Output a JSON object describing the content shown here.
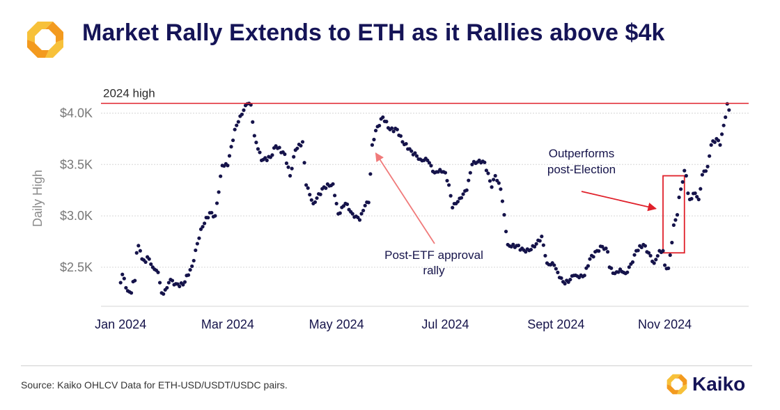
{
  "title": "Market Rally Extends to ETH as it Rallies above $4k",
  "source": "Source: Kaiko OHLCV Data for ETH-USD/USDT/USDC pairs.",
  "brand": {
    "name": "Kaiko",
    "icon": "kaiko-logo-icon",
    "accent": "#f39a1e",
    "accent_light": "#f7c13a"
  },
  "colors": {
    "points": "#15134a",
    "highlight": "#e0202a",
    "arrow_pink": "#f07a7a",
    "grid": "#d6d6d6",
    "text": "#15134a",
    "tick": "#777777"
  },
  "chart_data": {
    "type": "scatter",
    "title": "",
    "xlabel": "",
    "ylabel": "Daily High",
    "x_ticks": [
      {
        "label": "Jan 2024",
        "date": "2024-01-01"
      },
      {
        "label": "Mar 2024",
        "date": "2024-03-01"
      },
      {
        "label": "May 2024",
        "date": "2024-05-01"
      },
      {
        "label": "Jul 2024",
        "date": "2024-07-01"
      },
      {
        "label": "Sept 2024",
        "date": "2024-09-01"
      },
      {
        "label": "Nov 2024",
        "date": "2024-11-01"
      }
    ],
    "y_ticks": [
      {
        "label": "$2.5K",
        "value": 2500
      },
      {
        "label": "$3.0K",
        "value": 3000
      },
      {
        "label": "$3.5K",
        "value": 3500
      },
      {
        "label": "$4.0K",
        "value": 4000
      }
    ],
    "xlim": [
      "2023-12-21",
      "2024-12-18"
    ],
    "ylim": [
      2120,
      4220
    ],
    "grid": "horizontal",
    "reference_line": {
      "label": "2024 high",
      "value": 4095
    },
    "annotations": [
      {
        "text_lines": [
          "Post-ETF approval",
          "rally"
        ],
        "arrow_to": {
          "date": "2024-05-23",
          "value": 3610
        }
      },
      {
        "text_lines": [
          "Outperforms",
          "post-Election"
        ],
        "arrow_to": {
          "date": "2024-10-27",
          "value": 3070
        }
      }
    ],
    "highlight_box": {
      "from": "2024-10-31",
      "to": "2024-11-12",
      "low": 2640,
      "high": 3390
    },
    "series": [
      {
        "anchors": [
          [
            "2024-01-01",
            2350
          ],
          [
            "2024-01-02",
            2430
          ],
          [
            "2024-01-03",
            2390
          ],
          [
            "2024-01-04",
            2300
          ],
          [
            "2024-01-05",
            2270
          ],
          [
            "2024-01-06",
            2260
          ],
          [
            "2024-01-07",
            2250
          ],
          [
            "2024-01-08",
            2360
          ],
          [
            "2024-01-09",
            2370
          ],
          [
            "2024-01-10",
            2640
          ],
          [
            "2024-01-11",
            2710
          ],
          [
            "2024-01-12",
            2660
          ],
          [
            "2024-01-13",
            2580
          ],
          [
            "2024-01-14",
            2570
          ],
          [
            "2024-01-15",
            2550
          ],
          [
            "2024-01-16",
            2600
          ],
          [
            "2024-01-17",
            2580
          ],
          [
            "2024-01-18",
            2530
          ],
          [
            "2024-01-19",
            2500
          ],
          [
            "2024-01-20",
            2480
          ],
          [
            "2024-01-21",
            2470
          ],
          [
            "2024-01-22",
            2450
          ],
          [
            "2024-01-23",
            2350
          ],
          [
            "2024-01-24",
            2250
          ],
          [
            "2024-01-25",
            2240
          ],
          [
            "2024-01-26",
            2280
          ],
          [
            "2024-01-27",
            2300
          ],
          [
            "2024-01-28",
            2350
          ],
          [
            "2024-01-29",
            2380
          ],
          [
            "2024-01-30",
            2370
          ],
          [
            "2024-01-31",
            2330
          ],
          [
            "2024-02-05",
            2330
          ],
          [
            "2024-02-10",
            2510
          ],
          [
            "2024-02-15",
            2870
          ],
          [
            "2024-02-20",
            3030
          ],
          [
            "2024-02-23",
            3000
          ],
          [
            "2024-02-27",
            3490
          ],
          [
            "2024-03-01",
            3490
          ],
          [
            "2024-03-05",
            3840
          ],
          [
            "2024-03-08",
            3970
          ],
          [
            "2024-03-12",
            4090
          ],
          [
            "2024-03-14",
            4080
          ],
          [
            "2024-03-16",
            3780
          ],
          [
            "2024-03-20",
            3540
          ],
          [
            "2024-03-25",
            3570
          ],
          [
            "2024-03-28",
            3680
          ],
          [
            "2024-04-02",
            3600
          ],
          [
            "2024-04-05",
            3390
          ],
          [
            "2024-04-08",
            3640
          ],
          [
            "2024-04-12",
            3720
          ],
          [
            "2024-04-14",
            3300
          ],
          [
            "2024-04-18",
            3120
          ],
          [
            "2024-04-24",
            3280
          ],
          [
            "2024-04-29",
            3310
          ],
          [
            "2024-05-02",
            3020
          ],
          [
            "2024-05-06",
            3120
          ],
          [
            "2024-05-10",
            3020
          ],
          [
            "2024-05-14",
            2960
          ],
          [
            "2024-05-17",
            3100
          ],
          [
            "2024-05-19",
            3130
          ],
          [
            "2024-05-21",
            3690
          ],
          [
            "2024-05-23",
            3830
          ],
          [
            "2024-05-27",
            3960
          ],
          [
            "2024-05-31",
            3840
          ],
          [
            "2024-06-04",
            3840
          ],
          [
            "2024-06-07",
            3720
          ],
          [
            "2024-06-12",
            3630
          ],
          [
            "2024-06-17",
            3550
          ],
          [
            "2024-06-21",
            3540
          ],
          [
            "2024-06-25",
            3420
          ],
          [
            "2024-06-28",
            3450
          ],
          [
            "2024-07-01",
            3420
          ],
          [
            "2024-07-03",
            3300
          ],
          [
            "2024-07-05",
            3080
          ],
          [
            "2024-07-09",
            3170
          ],
          [
            "2024-07-13",
            3250
          ],
          [
            "2024-07-16",
            3500
          ],
          [
            "2024-07-20",
            3540
          ],
          [
            "2024-07-23",
            3520
          ],
          [
            "2024-07-27",
            3280
          ],
          [
            "2024-07-29",
            3390
          ],
          [
            "2024-08-01",
            3260
          ],
          [
            "2024-08-03",
            3010
          ],
          [
            "2024-08-05",
            2720
          ],
          [
            "2024-08-07",
            2700
          ],
          [
            "2024-08-10",
            2710
          ],
          [
            "2024-08-15",
            2650
          ],
          [
            "2024-08-20",
            2700
          ],
          [
            "2024-08-24",
            2800
          ],
          [
            "2024-08-27",
            2540
          ],
          [
            "2024-08-31",
            2520
          ],
          [
            "2024-09-03",
            2400
          ],
          [
            "2024-09-06",
            2340
          ],
          [
            "2024-09-09",
            2380
          ],
          [
            "2024-09-11",
            2420
          ],
          [
            "2024-09-14",
            2400
          ],
          [
            "2024-09-17",
            2420
          ],
          [
            "2024-09-20",
            2580
          ],
          [
            "2024-09-24",
            2660
          ],
          [
            "2024-09-27",
            2700
          ],
          [
            "2024-09-30",
            2650
          ],
          [
            "2024-10-01",
            2500
          ],
          [
            "2024-10-04",
            2440
          ],
          [
            "2024-10-07",
            2480
          ],
          [
            "2024-10-10",
            2440
          ],
          [
            "2024-10-14",
            2550
          ],
          [
            "2024-10-16",
            2660
          ],
          [
            "2024-10-20",
            2720
          ],
          [
            "2024-10-23",
            2640
          ],
          [
            "2024-10-26",
            2540
          ],
          [
            "2024-10-29",
            2660
          ],
          [
            "2024-10-31",
            2660
          ],
          [
            "2024-11-01",
            2520
          ],
          [
            "2024-11-03",
            2490
          ],
          [
            "2024-11-05",
            2740
          ],
          [
            "2024-11-06",
            2910
          ],
          [
            "2024-11-07",
            2960
          ],
          [
            "2024-11-08",
            3010
          ],
          [
            "2024-11-09",
            3180
          ],
          [
            "2024-11-10",
            3260
          ],
          [
            "2024-11-11",
            3330
          ],
          [
            "2024-11-12",
            3440
          ],
          [
            "2024-11-13",
            3390
          ],
          [
            "2024-11-14",
            3220
          ],
          [
            "2024-11-15",
            3160
          ],
          [
            "2024-11-18",
            3220
          ],
          [
            "2024-11-20",
            3160
          ],
          [
            "2024-11-22",
            3400
          ],
          [
            "2024-11-25",
            3480
          ],
          [
            "2024-11-27",
            3690
          ],
          [
            "2024-11-30",
            3750
          ],
          [
            "2024-12-02",
            3690
          ],
          [
            "2024-12-04",
            3880
          ],
          [
            "2024-12-05",
            3960
          ],
          [
            "2024-12-06",
            4090
          ],
          [
            "2024-12-07",
            4030
          ]
        ]
      }
    ]
  }
}
